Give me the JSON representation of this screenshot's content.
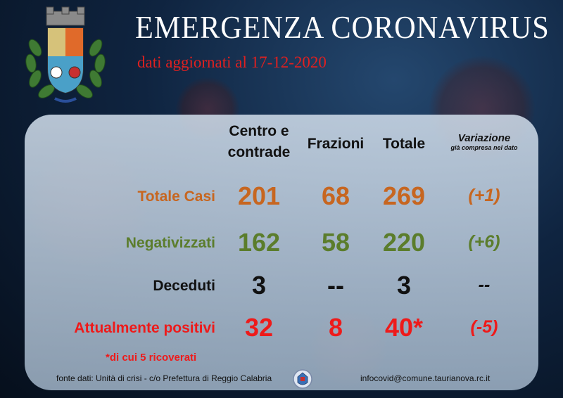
{
  "header": {
    "title": "EMERGENZA CORONAVIRUS",
    "subtitle": "dati aggiornati al 17-12-2020"
  },
  "table": {
    "columns": [
      "Centro e contrade",
      "Frazioni",
      "Totale"
    ],
    "column_centro_line1": "Centro e",
    "column_centro_line2": "contrade",
    "column_frazioni": "Frazioni",
    "column_totale": "Totale",
    "variation_header": "Variazione",
    "variation_note": "già compresa nel dato",
    "rows": [
      {
        "label": "Totale Casi",
        "centro": "201",
        "frazioni": "68",
        "totale": "269",
        "variazione": "(+1)",
        "color": "#c76620"
      },
      {
        "label": "Negativizzati",
        "centro": "162",
        "frazioni": "58",
        "totale": "220",
        "variazione": "(+6)",
        "color": "#5b7d2c"
      },
      {
        "label": "Deceduti",
        "centro": "3",
        "frazioni": "--",
        "totale": "3",
        "variazione": "--",
        "color": "#111111"
      },
      {
        "label": "Attualmente positivi",
        "centro": "32",
        "frazioni": "8",
        "totale": "40*",
        "variazione": "(-5)",
        "color": "#ee1a1a"
      }
    ]
  },
  "footnote": "*di cui 5 ricoverati",
  "footer": {
    "source": "fonte dati: Unità di crisi - c/o Prefettura di Reggio Calabria",
    "email": "infocovid@comune.taurianova.rc.it"
  },
  "icons": {
    "emblem": "municipal-coat-of-arms",
    "seal": "prefettura-seal"
  }
}
